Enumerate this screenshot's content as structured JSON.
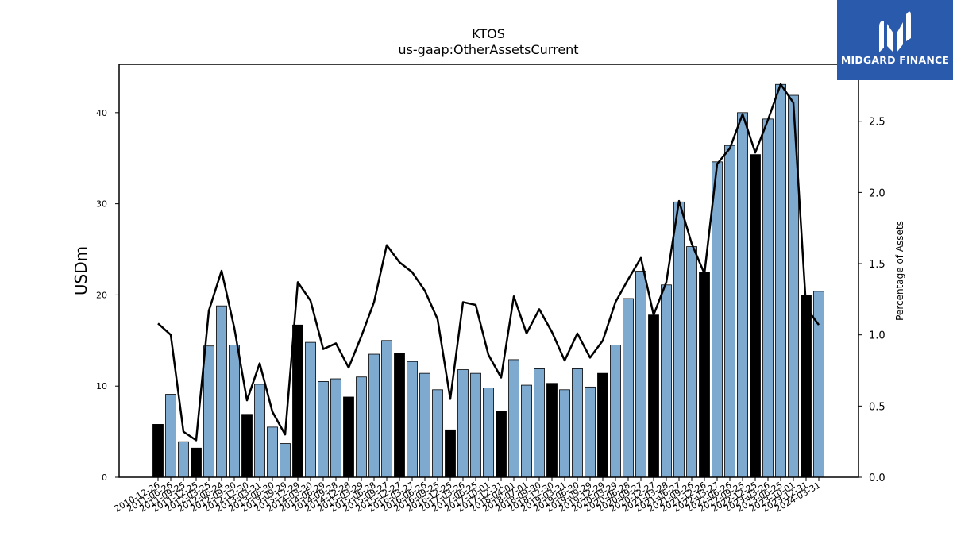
{
  "chart_data": {
    "type": "bar",
    "title": "KTOS",
    "subtitle": "us-gaap:OtherAssetsCurrent",
    "ylabel": "USDm",
    "y2label": "Percentage of Assets",
    "ylim": [
      0,
      45.3
    ],
    "y2lim": [
      0,
      2.9
    ],
    "yticks": [
      0,
      10,
      20,
      30,
      40
    ],
    "y2ticks": [
      "0.0",
      "0.5",
      "1.0",
      "1.5",
      "2.0",
      "2.5"
    ],
    "categories": [
      "2010-12-26",
      "2011-06-26",
      "2011-09-25",
      "2011-12-25",
      "2012-03-25",
      "2012-06-24",
      "2012-09-30",
      "2012-12-30",
      "2013-03-31",
      "2013-06-30",
      "2013-09-29",
      "2013-12-29",
      "2014-03-30",
      "2014-06-29",
      "2014-09-28",
      "2014-12-28",
      "2015-03-29",
      "2015-06-28",
      "2015-09-27",
      "2015-12-27",
      "2016-03-27",
      "2016-06-26",
      "2016-09-25",
      "2016-12-25",
      "2017-03-26",
      "2017-06-25",
      "2017-10-01",
      "2017-12-31",
      "2018-04-01",
      "2018-07-01",
      "2018-09-30",
      "2018-12-30",
      "2019-03-31",
      "2019-06-30",
      "2019-09-29",
      "2019-12-29",
      "2020-03-29",
      "2020-06-28",
      "2020-09-27",
      "2020-12-27",
      "2021-03-28",
      "2021-06-27",
      "2021-09-26",
      "2021-12-26",
      "2022-03-27",
      "2022-06-26",
      "2022-09-25",
      "2022-12-25",
      "2023-03-26",
      "2023-06-25",
      "2023-10-01",
      "2023-12-31",
      "2024-03-31"
    ],
    "series": [
      {
        "kind": "bar",
        "values": [
          5.8,
          9.1,
          3.9,
          3.2,
          14.4,
          18.8,
          14.5,
          6.9,
          10.2,
          5.5,
          3.7,
          16.7,
          14.8,
          10.5,
          10.8,
          8.8,
          11.0,
          13.5,
          15.0,
          13.6,
          12.7,
          11.4,
          9.6,
          5.2,
          11.8,
          11.4,
          9.8,
          7.2,
          12.9,
          10.1,
          11.9,
          10.3,
          9.6,
          11.9,
          9.9,
          11.4,
          14.5,
          19.6,
          22.6,
          17.8,
          21.1,
          30.2,
          25.3,
          22.5,
          34.6,
          36.4,
          40.0,
          35.4,
          39.3,
          43.1,
          41.9,
          20.0,
          20.4
        ],
        "highlight": [
          true,
          false,
          false,
          true,
          false,
          false,
          false,
          true,
          false,
          false,
          false,
          true,
          false,
          false,
          false,
          true,
          false,
          false,
          false,
          true,
          false,
          false,
          false,
          true,
          false,
          false,
          false,
          true,
          false,
          false,
          false,
          true,
          false,
          false,
          false,
          true,
          false,
          false,
          false,
          true,
          false,
          false,
          false,
          true,
          false,
          false,
          false,
          true,
          false,
          false,
          false,
          true,
          false
        ]
      },
      {
        "kind": "line",
        "axis": "right",
        "values": [
          1.08,
          1.0,
          0.32,
          0.26,
          1.17,
          1.45,
          1.05,
          0.54,
          0.8,
          0.46,
          0.3,
          1.37,
          1.24,
          0.9,
          0.94,
          0.77,
          0.99,
          1.23,
          1.63,
          1.51,
          1.44,
          1.31,
          1.11,
          0.55,
          1.23,
          1.21,
          0.86,
          0.7,
          1.27,
          1.01,
          1.18,
          1.02,
          0.82,
          1.01,
          0.84,
          0.96,
          1.23,
          1.39,
          1.54,
          1.14,
          1.37,
          1.94,
          1.64,
          1.43,
          2.2,
          2.31,
          2.55,
          2.28,
          2.51,
          2.76,
          2.63,
          1.19,
          1.07
        ]
      }
    ],
    "colors": {
      "bar": "#7eaacf",
      "bar_highlight": "#000000",
      "line": "#000000"
    },
    "grid": false,
    "legend": "none"
  },
  "logo": {
    "text": "MIDGARD FINANCE",
    "bg": "#2a5aab",
    "fg": "#ffffff"
  }
}
